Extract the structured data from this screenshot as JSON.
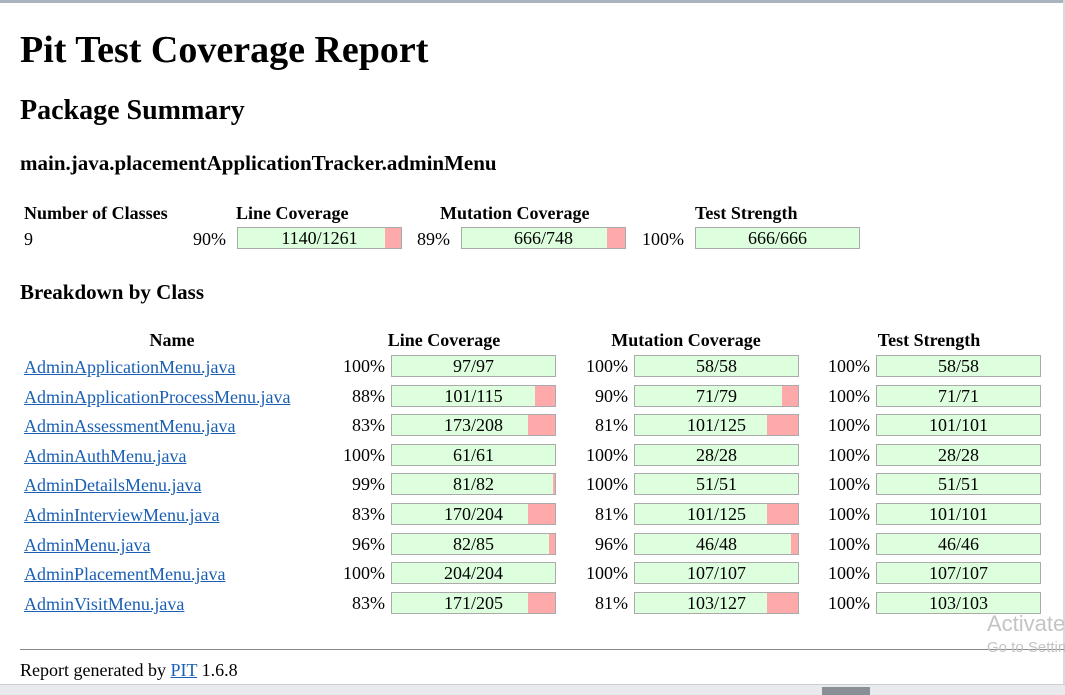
{
  "title": "Pit Test Coverage Report",
  "package_summary": {
    "heading": "Package Summary",
    "package_name": "main.java.placementApplicationTracker.adminMenu",
    "headers": {
      "classes": "Number of Classes",
      "line": "Line Coverage",
      "mutation": "Mutation Coverage",
      "strength": "Test Strength"
    },
    "num_classes": "9",
    "line": {
      "pct": "90%",
      "label": "1140/1261",
      "covered": 1140,
      "total": 1261
    },
    "mutation": {
      "pct": "89%",
      "label": "666/748",
      "covered": 666,
      "total": 748
    },
    "strength": {
      "pct": "100%",
      "label": "666/666",
      "covered": 666,
      "total": 666
    }
  },
  "breakdown": {
    "heading": "Breakdown by Class",
    "headers": {
      "name": "Name",
      "line": "Line Coverage",
      "mutation": "Mutation Coverage",
      "strength": "Test Strength"
    },
    "rows": [
      {
        "name": "AdminApplicationMenu.java",
        "line": {
          "pct": "100%",
          "label": "97/97",
          "covered": 97,
          "total": 97
        },
        "mutation": {
          "pct": "100%",
          "label": "58/58",
          "covered": 58,
          "total": 58
        },
        "strength": {
          "pct": "100%",
          "label": "58/58",
          "covered": 58,
          "total": 58
        }
      },
      {
        "name": "AdminApplicationProcessMenu.java",
        "line": {
          "pct": "88%",
          "label": "101/115",
          "covered": 101,
          "total": 115
        },
        "mutation": {
          "pct": "90%",
          "label": "71/79",
          "covered": 71,
          "total": 79
        },
        "strength": {
          "pct": "100%",
          "label": "71/71",
          "covered": 71,
          "total": 71
        }
      },
      {
        "name": "AdminAssessmentMenu.java",
        "line": {
          "pct": "83%",
          "label": "173/208",
          "covered": 173,
          "total": 208
        },
        "mutation": {
          "pct": "81%",
          "label": "101/125",
          "covered": 101,
          "total": 125
        },
        "strength": {
          "pct": "100%",
          "label": "101/101",
          "covered": 101,
          "total": 101
        }
      },
      {
        "name": "AdminAuthMenu.java",
        "line": {
          "pct": "100%",
          "label": "61/61",
          "covered": 61,
          "total": 61
        },
        "mutation": {
          "pct": "100%",
          "label": "28/28",
          "covered": 28,
          "total": 28
        },
        "strength": {
          "pct": "100%",
          "label": "28/28",
          "covered": 28,
          "total": 28
        }
      },
      {
        "name": "AdminDetailsMenu.java",
        "line": {
          "pct": "99%",
          "label": "81/82",
          "covered": 81,
          "total": 82
        },
        "mutation": {
          "pct": "100%",
          "label": "51/51",
          "covered": 51,
          "total": 51
        },
        "strength": {
          "pct": "100%",
          "label": "51/51",
          "covered": 51,
          "total": 51
        }
      },
      {
        "name": "AdminInterviewMenu.java",
        "line": {
          "pct": "83%",
          "label": "170/204",
          "covered": 170,
          "total": 204
        },
        "mutation": {
          "pct": "81%",
          "label": "101/125",
          "covered": 101,
          "total": 125
        },
        "strength": {
          "pct": "100%",
          "label": "101/101",
          "covered": 101,
          "total": 101
        }
      },
      {
        "name": "AdminMenu.java",
        "line": {
          "pct": "96%",
          "label": "82/85",
          "covered": 82,
          "total": 85
        },
        "mutation": {
          "pct": "96%",
          "label": "46/48",
          "covered": 46,
          "total": 48
        },
        "strength": {
          "pct": "100%",
          "label": "46/46",
          "covered": 46,
          "total": 46
        }
      },
      {
        "name": "AdminPlacementMenu.java",
        "line": {
          "pct": "100%",
          "label": "204/204",
          "covered": 204,
          "total": 204
        },
        "mutation": {
          "pct": "100%",
          "label": "107/107",
          "covered": 107,
          "total": 107
        },
        "strength": {
          "pct": "100%",
          "label": "107/107",
          "covered": 107,
          "total": 107
        }
      },
      {
        "name": "AdminVisitMenu.java",
        "line": {
          "pct": "83%",
          "label": "171/205",
          "covered": 171,
          "total": 205
        },
        "mutation": {
          "pct": "81%",
          "label": "103/127",
          "covered": 103,
          "total": 127
        },
        "strength": {
          "pct": "100%",
          "label": "103/103",
          "covered": 103,
          "total": 103
        }
      }
    ]
  },
  "footer": {
    "prefix": "Report generated by",
    "link": "PIT",
    "version": "1.6.8"
  },
  "watermark": {
    "line1": "Activate",
    "line2": "Go to Settings"
  },
  "colors": {
    "covered": "#ddffdd",
    "uncovered": "#ffaaaa",
    "link": "#1a5fb4"
  }
}
